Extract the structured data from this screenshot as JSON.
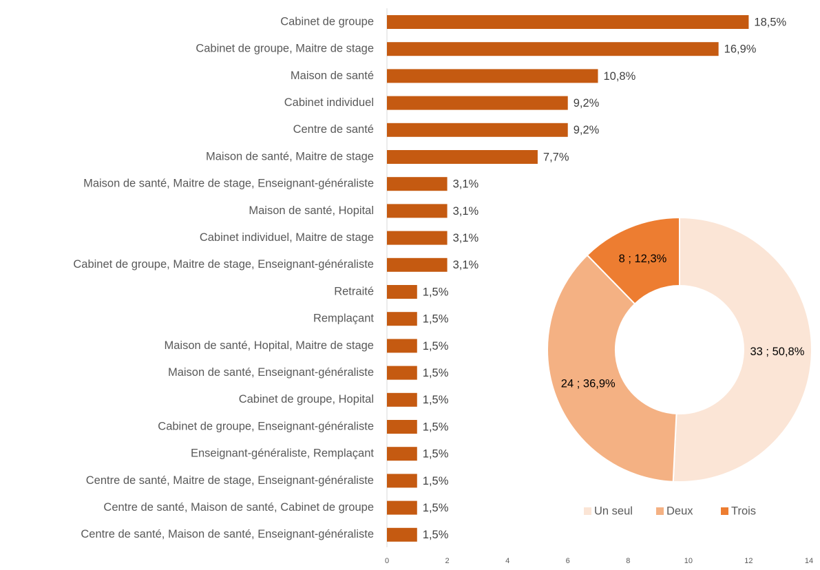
{
  "chart_data": [
    {
      "type": "bar",
      "orientation": "horizontal",
      "categories": [
        "Cabinet de groupe",
        "Cabinet de groupe, Maitre de stage",
        "Maison de santé",
        "Cabinet individuel",
        "Centre de santé",
        "Maison de santé, Maitre de stage",
        "Maison de santé, Maitre de stage, Enseignant-généraliste",
        "Maison de santé, Hopital",
        "Cabinet individuel, Maitre de stage",
        "Cabinet de groupe, Maitre de stage, Enseignant-généraliste",
        "Retraité",
        "Remplaçant",
        "Maison de santé, Hopital, Maitre de stage",
        "Maison de santé, Enseignant-généraliste",
        "Cabinet de groupe, Hopital",
        "Cabinet de groupe, Enseignant-généraliste",
        "Enseignant-généraliste, Remplaçant",
        "Centre de santé, Maitre de stage, Enseignant-généraliste",
        "Centre de santé, Maison de santé, Cabinet de groupe",
        "Centre de santé, Maison de santé, Enseignant-généraliste"
      ],
      "values": [
        12,
        11,
        7,
        6,
        6,
        5,
        2,
        2,
        2,
        2,
        1,
        1,
        1,
        1,
        1,
        1,
        1,
        1,
        1,
        1
      ],
      "value_labels": [
        "18,5%",
        "16,9%",
        "10,8%",
        "9,2%",
        "9,2%",
        "7,7%",
        "3,1%",
        "3,1%",
        "3,1%",
        "3,1%",
        "1,5%",
        "1,5%",
        "1,5%",
        "1,5%",
        "1,5%",
        "1,5%",
        "1,5%",
        "1,5%",
        "1,5%",
        "1,5%"
      ],
      "color": "#c55a11",
      "xlim": [
        0,
        14
      ],
      "xticks": [
        0,
        2,
        4,
        6,
        8,
        10,
        12,
        14
      ],
      "grid": false
    },
    {
      "type": "donut",
      "categories": [
        "Un seul",
        "Deux",
        "Trois"
      ],
      "values": [
        33,
        24,
        8
      ],
      "value_labels": [
        "33 ; 50,8%",
        "24 ; 36,9%",
        "8 ; 12,3%"
      ],
      "colors": [
        "#fbe5d6",
        "#f4b183",
        "#ed7d31"
      ],
      "legend": "bottom"
    }
  ]
}
